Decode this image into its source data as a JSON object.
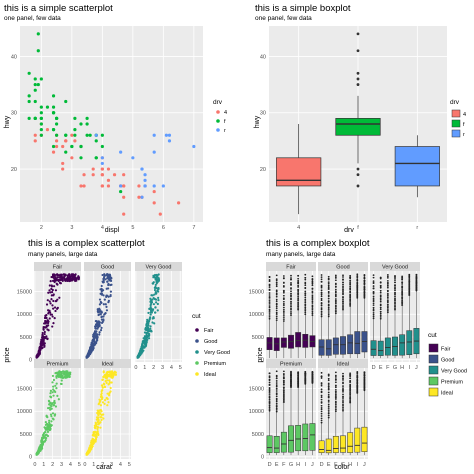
{
  "colors": {
    "panel_bg": "#ebebeb",
    "grid": "#ffffff",
    "strip_bg": "#d9d9d9",
    "drv_4": "#f8766d",
    "drv_f": "#00ba38",
    "drv_r": "#619cff",
    "cut_Fair": "#440154",
    "cut_Good": "#3b528b",
    "cut_Very Good": "#21908c",
    "cut_Premium": "#5dc863",
    "cut_Ideal": "#fde725"
  },
  "chart_data": [
    {
      "type": "scatter",
      "title": "this is a simple scatterplot",
      "subtitle": "one panel, few data",
      "xlabel": "displ",
      "ylabel": "hwy",
      "xlim": [
        1.3,
        7.3
      ],
      "ylim": [
        10.6,
        45.4
      ],
      "xticks": [
        2,
        3,
        4,
        5,
        6,
        7
      ],
      "yticks": [
        20,
        30,
        40
      ],
      "grid": true,
      "legend": {
        "title": "drv",
        "position": "right",
        "entries": [
          "4",
          "f",
          "r"
        ]
      },
      "series": [
        {
          "name": "4",
          "points": [
            [
              1.8,
              26
            ],
            [
              1.8,
              25
            ],
            [
              2.0,
              28
            ],
            [
              2.0,
              26
            ],
            [
              2.8,
              25
            ],
            [
              2.8,
              25
            ],
            [
              3.1,
              25
            ],
            [
              4.0,
              17
            ],
            [
              4.2,
              20
            ],
            [
              4.2,
              17
            ],
            [
              4.6,
              17
            ],
            [
              4.7,
              12
            ],
            [
              4.7,
              17
            ],
            [
              5.2,
              17
            ],
            [
              5.7,
              14
            ],
            [
              6.5,
              14
            ],
            [
              2.4,
              23
            ],
            [
              2.7,
              21
            ],
            [
              2.7,
              20
            ],
            [
              3.0,
              26
            ],
            [
              3.3,
              17
            ],
            [
              3.7,
              19
            ],
            [
              3.7,
              20
            ],
            [
              4.0,
              19
            ],
            [
              4.0,
              17
            ],
            [
              4.0,
              20
            ],
            [
              4.7,
              17
            ],
            [
              4.7,
              15
            ],
            [
              5.2,
              15
            ],
            [
              5.9,
              12
            ],
            [
              4.4,
              19
            ],
            [
              5.3,
              15
            ],
            [
              5.4,
              17
            ],
            [
              3.4,
              17
            ],
            [
              4.6,
              17
            ],
            [
              5.7,
              16
            ],
            [
              2.5,
              26
            ],
            [
              2.5,
              25
            ],
            [
              3.0,
              22
            ],
            [
              3.3,
              24
            ],
            [
              4.0,
              22
            ],
            [
              2.7,
              24
            ],
            [
              3.4,
              19
            ],
            [
              4.0,
              20
            ],
            [
              4.0,
              19
            ],
            [
              2.2,
              27
            ],
            [
              2.5,
              24
            ],
            [
              4.7,
              19
            ],
            [
              4.2,
              18
            ]
          ]
        },
        {
          "name": "f",
          "points": [
            [
              1.8,
              29
            ],
            [
              1.8,
              29
            ],
            [
              2.0,
              31
            ],
            [
              2.0,
              30
            ],
            [
              2.8,
              26
            ],
            [
              2.8,
              26
            ],
            [
              3.1,
              27
            ],
            [
              2.4,
              30
            ],
            [
              2.4,
              33
            ],
            [
              3.1,
              26
            ],
            [
              3.5,
              29
            ],
            [
              3.6,
              26
            ],
            [
              2.4,
              24
            ],
            [
              3.0,
              24
            ],
            [
              3.3,
              22
            ],
            [
              3.3,
              24
            ],
            [
              3.8,
              22
            ],
            [
              3.8,
              22
            ],
            [
              4.0,
              24
            ],
            [
              1.8,
              35
            ],
            [
              1.6,
              33
            ],
            [
              1.6,
              32
            ],
            [
              1.6,
              29
            ],
            [
              1.8,
              29
            ],
            [
              1.8,
              32
            ],
            [
              2.0,
              29
            ],
            [
              2.4,
              27
            ],
            [
              2.4,
              27
            ],
            [
              3.0,
              24
            ],
            [
              3.5,
              26
            ],
            [
              3.3,
              28
            ],
            [
              3.3,
              24
            ],
            [
              3.8,
              26
            ],
            [
              3.8,
              26
            ],
            [
              4.0,
              26
            ],
            [
              2.0,
              28
            ],
            [
              2.0,
              27
            ],
            [
              2.4,
              30
            ],
            [
              2.4,
              30
            ],
            [
              2.5,
              26
            ],
            [
              2.5,
              29
            ],
            [
              2.8,
              32
            ],
            [
              2.2,
              31
            ],
            [
              1.9,
              44
            ],
            [
              1.9,
              41
            ],
            [
              2.0,
              29
            ],
            [
              2.0,
              26
            ],
            [
              2.5,
              28
            ],
            [
              2.5,
              29
            ],
            [
              1.8,
              36
            ],
            [
              2.0,
              36
            ],
            [
              1.6,
              37
            ],
            [
              1.9,
              35
            ],
            [
              2.8,
              23
            ],
            [
              1.8,
              34
            ],
            [
              2.4,
              31
            ],
            [
              2.5,
              29
            ],
            [
              3.5,
              28
            ],
            [
              3.8,
              25
            ],
            [
              3.1,
              29
            ],
            [
              4.6,
              16
            ]
          ]
        },
        {
          "name": "r",
          "points": [
            [
              5.3,
              20
            ],
            [
              5.3,
              15
            ],
            [
              5.3,
              20
            ],
            [
              5.7,
              17
            ],
            [
              6.0,
              17
            ],
            [
              5.7,
              26
            ],
            [
              5.7,
              23
            ],
            [
              6.2,
              26
            ],
            [
              6.2,
              25
            ],
            [
              7.0,
              24
            ],
            [
              5.4,
              18
            ],
            [
              5.4,
              17
            ],
            [
              5.4,
              19
            ],
            [
              4.6,
              17
            ],
            [
              5.4,
              17
            ],
            [
              3.8,
              26
            ],
            [
              4.0,
              21
            ],
            [
              4.0,
              22
            ],
            [
              4.6,
              23
            ],
            [
              5.0,
              22
            ],
            [
              6.1,
              26
            ]
          ]
        }
      ]
    },
    {
      "type": "box",
      "title": "this is a simple boxplot",
      "subtitle": "one panel, few data",
      "xlabel": "drv",
      "ylabel": "hwy",
      "ylim": [
        10.6,
        45.4
      ],
      "yticks": [
        20,
        30,
        40
      ],
      "categories": [
        "4",
        "f",
        "r"
      ],
      "grid": true,
      "legend": {
        "title": "drv",
        "position": "right",
        "entries": [
          "4",
          "f",
          "r"
        ]
      },
      "boxes": [
        {
          "name": "4",
          "min": 12,
          "q1": 17,
          "median": 18,
          "q3": 22,
          "max": 28,
          "outliers": []
        },
        {
          "name": "f",
          "min": 21,
          "q1": 26,
          "median": 28,
          "q3": 29,
          "max": 33,
          "outliers": [
            37,
            35,
            36,
            44,
            41,
            17,
            19,
            20
          ]
        },
        {
          "name": "r",
          "min": 15,
          "q1": 17,
          "median": 21,
          "q3": 24,
          "max": 26,
          "outliers": []
        }
      ]
    },
    {
      "type": "scatter",
      "title": "this is a complex scatterplot",
      "subtitle": "many panels, large data",
      "xlabel": "carat",
      "ylabel": "price",
      "xlim": [
        -0.1,
        5.2
      ],
      "ylim": [
        -500,
        19500
      ],
      "xticks": [
        0,
        1,
        2,
        3,
        4,
        5
      ],
      "yticks": [
        0,
        5000,
        10000,
        15000
      ],
      "ytick_labels": [
        "0",
        "5000",
        "10000",
        "15000"
      ],
      "grid": true,
      "legend": {
        "title": "cut",
        "position": "right",
        "entries": [
          "Fair",
          "Good",
          "Very Good",
          "Premium",
          "Ideal"
        ]
      },
      "facets": [
        {
          "name": "Fair",
          "carat_max": 5.0,
          "spread": 1.25
        },
        {
          "name": "Good",
          "carat_max": 3.0,
          "spread": 0.9
        },
        {
          "name": "Very Good",
          "carat_max": 2.6,
          "spread": 0.9
        },
        {
          "name": "Premium",
          "carat_max": 4.0,
          "spread": 0.85
        },
        {
          "name": "Ideal",
          "carat_max": 3.5,
          "spread": 0.8
        }
      ]
    },
    {
      "type": "box",
      "title": "this is a complex boxplot",
      "subtitle": "many panels, large data",
      "xlabel": "color",
      "ylabel": "price",
      "ylim": [
        -500,
        19500
      ],
      "yticks": [
        0,
        5000,
        10000,
        15000
      ],
      "ytick_labels": [
        "0",
        "5000",
        "10000",
        "15000"
      ],
      "categories": [
        "D",
        "E",
        "F",
        "G",
        "H",
        "I",
        "J"
      ],
      "grid": true,
      "legend": {
        "title": "cut",
        "position": "right",
        "entries": [
          "Fair",
          "Good",
          "Very Good",
          "Premium",
          "Ideal"
        ]
      },
      "facets": [
        {
          "name": "Fair",
          "boxes": [
            [
              2200,
              3700,
              4900,
              9000
            ],
            [
              2000,
              3500,
              4800,
              8700
            ],
            [
              2700,
              3900,
              4800,
              8500
            ],
            [
              2500,
              4000,
              5400,
              9800
            ],
            [
              2800,
              4200,
              6000,
              11000
            ],
            [
              2700,
              4300,
              5600,
              10000
            ],
            [
              2800,
              4000,
              5300,
              9800
            ]
          ]
        },
        {
          "name": "Good",
          "boxes": [
            [
              980,
              2800,
              4400,
              9500
            ],
            [
              950,
              2400,
              4400,
              9500
            ],
            [
              1200,
              3300,
              4800,
              10200
            ],
            [
              1200,
              3300,
              5100,
              11000
            ],
            [
              1300,
              3700,
              5500,
              11800
            ],
            [
              1300,
              3600,
              6200,
              13600
            ],
            [
              1700,
              4000,
              6200,
              13600
            ]
          ]
        },
        {
          "name": "Very Good",
          "boxes": [
            [
              920,
              2300,
              4200,
              9100
            ],
            [
              900,
              2000,
              4100,
              9000
            ],
            [
              1000,
              2700,
              4800,
              10400
            ],
            [
              950,
              2900,
              5000,
              11000
            ],
            [
              1000,
              3700,
              5500,
              12000
            ],
            [
              1100,
              3900,
              6400,
              14200
            ],
            [
              1300,
              4100,
              6900,
              15200
            ]
          ]
        },
        {
          "name": "Premium",
          "boxes": [
            [
              900,
              2000,
              4600,
              10100
            ],
            [
              900,
              1900,
              4500,
              9900
            ],
            [
              1000,
              2800,
              5400,
              12000
            ],
            [
              1000,
              3600,
              6800,
              15300
            ],
            [
              1300,
              3900,
              6900,
              15300
            ],
            [
              1300,
              4000,
              7200,
              16000
            ],
            [
              1400,
              4800,
              7300,
              16200
            ]
          ]
        },
        {
          "name": "Ideal",
          "boxes": [
            [
              890,
              1600,
              3500,
              7500
            ],
            [
              850,
              1400,
              3900,
              8600
            ],
            [
              900,
              1800,
              4500,
              10000
            ],
            [
              960,
              1900,
              4600,
              10100
            ],
            [
              900,
              2300,
              5300,
              11900
            ],
            [
              1000,
              2500,
              6300,
              14000
            ],
            [
              1100,
              3000,
              6500,
              14600
            ]
          ]
        }
      ]
    }
  ]
}
